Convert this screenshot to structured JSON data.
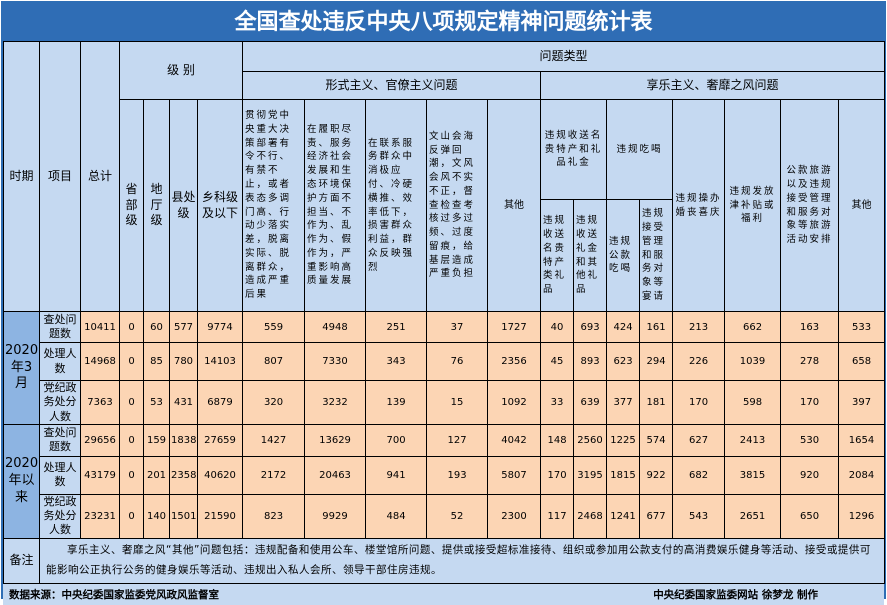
{
  "title": "全国查处违反中央八项规定精神问题统计表",
  "headers": {
    "period": "时期",
    "item": "项目",
    "total": "总计",
    "level": "级 别",
    "levels": [
      "省部级",
      "地厅级",
      "县处级",
      "乡科级及以下"
    ],
    "problem_type": "问题类型",
    "formalism": "形式主义、官僚主义问题",
    "hedonism": "享乐主义、奢靡之风问题",
    "formalism_cols": [
      "贯彻党中央重大决策部署有令不行、有禁不止，或者表态多调门高、行动少落实差，脱离实际、脱离群众，造成严重后果",
      "在履职尽责、服务经济社会发展和生态环境保护方面不担当、不作为、乱作为、假作为，严重影响高质量发展",
      "在联系服务群众中消极应付、冷硬横推、效率低下，损害群众利益，群众反映强烈",
      "文山会海反弹回潮，文风会风不实不正，督查检查考核过多过频、过度留痕，给基层造成严重负担",
      "其他"
    ],
    "gifts": "违规收送名贵特产和礼品礼金",
    "gifts_sub": [
      "违规收送名贵特产类礼品",
      "违规收送礼金和其他礼品"
    ],
    "dining": "违规吃喝",
    "dining_sub": [
      "违规公款吃喝",
      "违规接受管理和服务对象等宴请"
    ],
    "hedonism_cols": [
      "违规操办婚丧喜庆",
      "违规发放津补贴或福利",
      "公款旅游以及违规接受管理和服务对象等旅游活动安排",
      "其他"
    ]
  },
  "groups": [
    {
      "period": "2020年3月",
      "rows": [
        {
          "item": "查处问题数",
          "values": [
            "10411",
            "0",
            "60",
            "577",
            "9774",
            "559",
            "4948",
            "251",
            "37",
            "1727",
            "40",
            "693",
            "424",
            "161",
            "213",
            "662",
            "163",
            "533"
          ]
        },
        {
          "item": "处理人数",
          "values": [
            "14968",
            "0",
            "85",
            "780",
            "14103",
            "807",
            "7330",
            "343",
            "76",
            "2356",
            "45",
            "893",
            "623",
            "294",
            "226",
            "1039",
            "278",
            "658"
          ]
        },
        {
          "item": "党纪政务处分人数",
          "values": [
            "7363",
            "0",
            "53",
            "431",
            "6879",
            "320",
            "3232",
            "139",
            "15",
            "1092",
            "33",
            "639",
            "377",
            "181",
            "170",
            "598",
            "170",
            "397"
          ]
        }
      ]
    },
    {
      "period": "2020年以来",
      "rows": [
        {
          "item": "查处问题数",
          "values": [
            "29656",
            "0",
            "159",
            "1838",
            "27659",
            "1427",
            "13629",
            "700",
            "127",
            "4042",
            "148",
            "2560",
            "1225",
            "574",
            "627",
            "2413",
            "530",
            "1654"
          ]
        },
        {
          "item": "处理人数",
          "values": [
            "43179",
            "0",
            "201",
            "2358",
            "40620",
            "2172",
            "20463",
            "941",
            "193",
            "5807",
            "170",
            "3195",
            "1815",
            "922",
            "682",
            "3815",
            "920",
            "2084"
          ]
        },
        {
          "item": "党纪政务处分人数",
          "values": [
            "23231",
            "0",
            "140",
            "1501",
            "21590",
            "823",
            "9929",
            "484",
            "52",
            "2300",
            "117",
            "2468",
            "1241",
            "677",
            "543",
            "2651",
            "650",
            "1296"
          ]
        }
      ]
    }
  ],
  "note": {
    "label": "备注",
    "text": "享乐主义、奢靡之风“其他”问题包括：违规配备和使用公车、楼堂馆所问题、提供或接受超标准接待、组织或参加用公款支付的高消费娱乐健身等活动、接受或提供可能影响公正执行公务的健身娱乐等活动、违规出入私人会所、领导干部住房违规。"
  },
  "footer": {
    "source": "数据来源：中央纪委国家监委党风政风监督室",
    "credit": "中央纪委国家监委网站 徐梦龙 制作"
  },
  "colors": {
    "title_bg": "#2f6db5",
    "header_bg": "#c5d9f1",
    "data_bg": "#fcd5b4",
    "period_bg": "#8db4e2"
  }
}
